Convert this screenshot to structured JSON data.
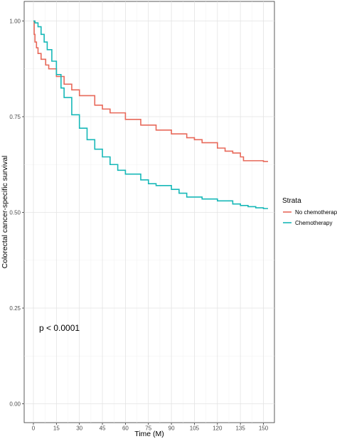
{
  "chart_data": {
    "type": "line",
    "title": "",
    "xlabel": "Time (M)",
    "ylabel": "Colorectal cancer-specific survival",
    "xlim": [
      0,
      153
    ],
    "ylim": [
      0,
      1
    ],
    "x_ticks": [
      "0",
      "15",
      "30",
      "45",
      "60",
      "75",
      "90",
      "105",
      "120",
      "135",
      "150"
    ],
    "x_tick_values": [
      0,
      15,
      30,
      45,
      60,
      75,
      90,
      105,
      120,
      135,
      150
    ],
    "y_ticks": [
      "0.00",
      "0.25",
      "0.50",
      "0.75",
      "1.00"
    ],
    "y_tick_values": [
      0,
      0.25,
      0.5,
      0.75,
      1.0
    ],
    "grid": true,
    "step": true,
    "legend": {
      "title": "Strata",
      "position": "right"
    },
    "annotation": "p < 0.0001",
    "series": [
      {
        "name": "No chemotherapy",
        "color": "#e8695a",
        "x": [
          0,
          0.5,
          1,
          2,
          3,
          5,
          8,
          10,
          15,
          20,
          25,
          30,
          40,
          45,
          50,
          60,
          70,
          80,
          90,
          100,
          105,
          110,
          120,
          125,
          130,
          135,
          137,
          140,
          145,
          150,
          153
        ],
        "y": [
          1.0,
          0.965,
          0.945,
          0.93,
          0.915,
          0.9,
          0.885,
          0.875,
          0.855,
          0.835,
          0.82,
          0.805,
          0.78,
          0.77,
          0.76,
          0.743,
          0.728,
          0.715,
          0.705,
          0.695,
          0.69,
          0.682,
          0.668,
          0.66,
          0.655,
          0.645,
          0.635,
          0.635,
          0.635,
          0.633,
          0.633
        ]
      },
      {
        "name": "Chemotherapy",
        "color": "#17b8b8",
        "x": [
          0,
          1,
          3,
          5,
          7,
          9,
          12,
          15,
          18,
          20,
          25,
          30,
          35,
          40,
          45,
          50,
          55,
          60,
          70,
          75,
          80,
          90,
          95,
          100,
          110,
          120,
          125,
          130,
          135,
          140,
          145,
          150,
          153
        ],
        "y": [
          1.0,
          0.995,
          0.985,
          0.965,
          0.945,
          0.925,
          0.895,
          0.86,
          0.825,
          0.8,
          0.755,
          0.72,
          0.69,
          0.665,
          0.645,
          0.625,
          0.61,
          0.6,
          0.585,
          0.575,
          0.57,
          0.56,
          0.55,
          0.54,
          0.535,
          0.53,
          0.53,
          0.522,
          0.518,
          0.515,
          0.512,
          0.51,
          0.51
        ]
      }
    ]
  }
}
